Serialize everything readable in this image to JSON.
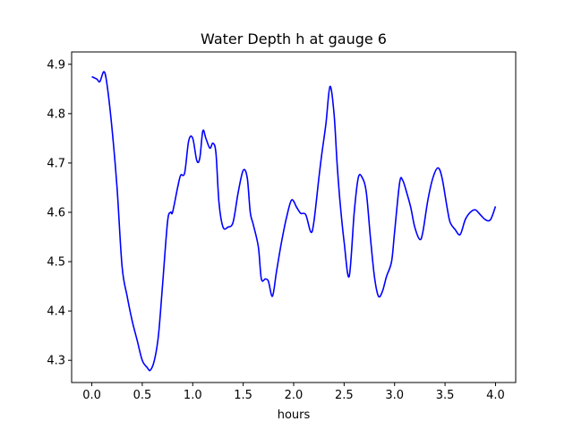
{
  "chart_data": {
    "type": "line",
    "title": "Water Depth h at gauge 6",
    "xlabel": "hours",
    "ylabel": "",
    "xlim": [
      -0.2,
      4.2
    ],
    "ylim": [
      4.255,
      4.925
    ],
    "xticks": [
      0.0,
      0.5,
      1.0,
      1.5,
      2.0,
      2.5,
      3.0,
      3.5,
      4.0
    ],
    "xtick_labels": [
      "0.0",
      "0.5",
      "1.0",
      "1.5",
      "2.0",
      "2.5",
      "3.0",
      "3.5",
      "4.0"
    ],
    "yticks": [
      4.3,
      4.4,
      4.5,
      4.6,
      4.7,
      4.8,
      4.9
    ],
    "ytick_labels": [
      "4.3",
      "4.4",
      "4.5",
      "4.6",
      "4.7",
      "4.8",
      "4.9"
    ],
    "grid": false,
    "series": [
      {
        "color": "#0000ff",
        "x": [
          0.0,
          0.05,
          0.08,
          0.12,
          0.15,
          0.2,
          0.25,
          0.3,
          0.35,
          0.4,
          0.45,
          0.5,
          0.55,
          0.58,
          0.62,
          0.66,
          0.7,
          0.75,
          0.78,
          0.8,
          0.85,
          0.88,
          0.92,
          0.96,
          1.0,
          1.04,
          1.07,
          1.1,
          1.13,
          1.17,
          1.2,
          1.23,
          1.26,
          1.3,
          1.35,
          1.4,
          1.45,
          1.5,
          1.54,
          1.57,
          1.6,
          1.65,
          1.68,
          1.72,
          1.75,
          1.79,
          1.83,
          1.88,
          1.93,
          1.98,
          2.03,
          2.07,
          2.12,
          2.17,
          2.2,
          2.25,
          2.28,
          2.32,
          2.36,
          2.4,
          2.43,
          2.46,
          2.5,
          2.55,
          2.6,
          2.64,
          2.68,
          2.72,
          2.76,
          2.8,
          2.84,
          2.88,
          2.92,
          2.97,
          3.0,
          3.05,
          3.08,
          3.12,
          3.16,
          3.2,
          3.25,
          3.28,
          3.33,
          3.38,
          3.43,
          3.47,
          3.52,
          3.55,
          3.6,
          3.65,
          3.7,
          3.75,
          3.8,
          3.85,
          3.9,
          3.95,
          4.0
        ],
        "y": [
          4.875,
          4.87,
          4.865,
          4.885,
          4.86,
          4.77,
          4.65,
          4.49,
          4.43,
          4.38,
          4.34,
          4.3,
          4.285,
          4.28,
          4.3,
          4.35,
          4.45,
          4.58,
          4.6,
          4.6,
          4.65,
          4.675,
          4.68,
          4.745,
          4.75,
          4.705,
          4.71,
          4.765,
          4.75,
          4.73,
          4.74,
          4.72,
          4.62,
          4.57,
          4.57,
          4.58,
          4.64,
          4.685,
          4.67,
          4.6,
          4.575,
          4.53,
          4.465,
          4.465,
          4.46,
          4.43,
          4.48,
          4.54,
          4.59,
          4.625,
          4.61,
          4.598,
          4.595,
          4.56,
          4.58,
          4.67,
          4.72,
          4.78,
          4.855,
          4.8,
          4.7,
          4.62,
          4.54,
          4.47,
          4.6,
          4.67,
          4.67,
          4.64,
          4.55,
          4.47,
          4.43,
          4.44,
          4.47,
          4.5,
          4.56,
          4.66,
          4.665,
          4.64,
          4.61,
          4.57,
          4.545,
          4.56,
          4.625,
          4.67,
          4.69,
          4.67,
          4.61,
          4.58,
          4.565,
          4.555,
          4.585,
          4.6,
          4.605,
          4.595,
          4.585,
          4.585,
          4.612
        ]
      }
    ]
  }
}
